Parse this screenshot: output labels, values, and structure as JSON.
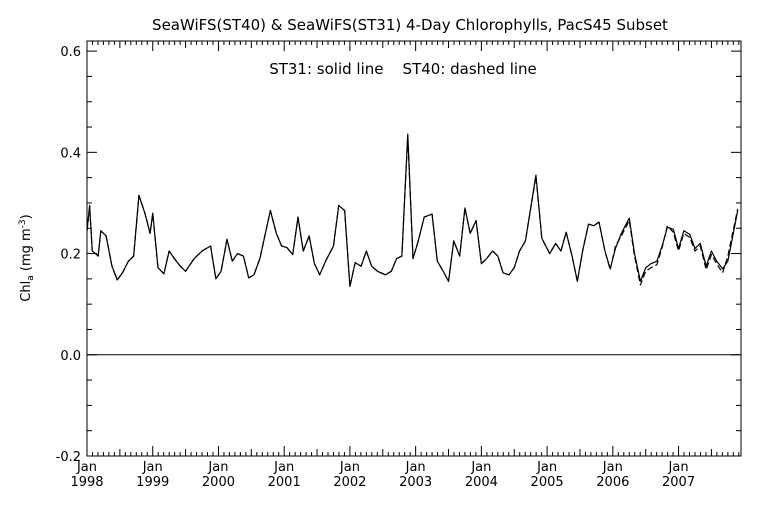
{
  "chart_data": {
    "type": "line",
    "title": "SeaWiFS(ST40) & SeaWiFS(ST31) 4-Day Chlorophylls, PacS45 Subset",
    "annotation": "ST31: solid line    ST40: dashed line",
    "ylabel_main": "Chl",
    "ylabel_sub": "a",
    "ylabel_unit": " (mg m",
    "ylabel_exp": "-3",
    "ylabel_close": ")",
    "ylim": [
      -0.2,
      0.62
    ],
    "xlim": [
      1998.0,
      2007.95
    ],
    "y_ticks": [
      {
        "value": -0.2,
        "label": "-0.2"
      },
      {
        "value": 0.0,
        "label": "0.0"
      },
      {
        "value": 0.2,
        "label": "0.2"
      },
      {
        "value": 0.4,
        "label": "0.4"
      },
      {
        "value": 0.6,
        "label": "0.6"
      }
    ],
    "x_ticks": [
      {
        "value": 1998,
        "month": "Jan",
        "year": "1998"
      },
      {
        "value": 1999,
        "month": "Jan",
        "year": "1999"
      },
      {
        "value": 2000,
        "month": "Jan",
        "year": "2000"
      },
      {
        "value": 2001,
        "month": "Jan",
        "year": "2001"
      },
      {
        "value": 2002,
        "month": "Jan",
        "year": "2002"
      },
      {
        "value": 2003,
        "month": "Jan",
        "year": "2003"
      },
      {
        "value": 2004,
        "month": "Jan",
        "year": "2004"
      },
      {
        "value": 2005,
        "month": "Jan",
        "year": "2005"
      },
      {
        "value": 2006,
        "month": "Jan",
        "year": "2006"
      },
      {
        "value": 2007,
        "month": "Jan",
        "year": "2007"
      }
    ],
    "zero_line": 0.0,
    "series": [
      {
        "name": "ST31",
        "style": "solid",
        "points": [
          [
            1998.0,
            0.245
          ],
          [
            1998.04,
            0.295
          ],
          [
            1998.08,
            0.205
          ],
          [
            1998.13,
            0.2
          ],
          [
            1998.17,
            0.195
          ],
          [
            1998.21,
            0.245
          ],
          [
            1998.29,
            0.235
          ],
          [
            1998.38,
            0.175
          ],
          [
            1998.46,
            0.148
          ],
          [
            1998.54,
            0.162
          ],
          [
            1998.63,
            0.185
          ],
          [
            1998.71,
            0.195
          ],
          [
            1998.79,
            0.315
          ],
          [
            1998.88,
            0.28
          ],
          [
            1998.96,
            0.24
          ],
          [
            1999.0,
            0.28
          ],
          [
            1999.08,
            0.172
          ],
          [
            1999.17,
            0.16
          ],
          [
            1999.25,
            0.205
          ],
          [
            1999.33,
            0.19
          ],
          [
            1999.42,
            0.175
          ],
          [
            1999.5,
            0.165
          ],
          [
            1999.63,
            0.19
          ],
          [
            1999.75,
            0.205
          ],
          [
            1999.88,
            0.215
          ],
          [
            1999.96,
            0.15
          ],
          [
            2000.04,
            0.165
          ],
          [
            2000.13,
            0.228
          ],
          [
            2000.21,
            0.185
          ],
          [
            2000.29,
            0.2
          ],
          [
            2000.38,
            0.195
          ],
          [
            2000.46,
            0.152
          ],
          [
            2000.54,
            0.158
          ],
          [
            2000.63,
            0.19
          ],
          [
            2000.79,
            0.285
          ],
          [
            2000.88,
            0.24
          ],
          [
            2000.96,
            0.215
          ],
          [
            2001.04,
            0.212
          ],
          [
            2001.13,
            0.198
          ],
          [
            2001.21,
            0.272
          ],
          [
            2001.29,
            0.205
          ],
          [
            2001.38,
            0.235
          ],
          [
            2001.46,
            0.18
          ],
          [
            2001.54,
            0.158
          ],
          [
            2001.63,
            0.185
          ],
          [
            2001.75,
            0.215
          ],
          [
            2001.83,
            0.295
          ],
          [
            2001.92,
            0.285
          ],
          [
            2002.0,
            0.135
          ],
          [
            2002.08,
            0.182
          ],
          [
            2002.17,
            0.175
          ],
          [
            2002.25,
            0.205
          ],
          [
            2002.33,
            0.175
          ],
          [
            2002.42,
            0.165
          ],
          [
            2002.54,
            0.158
          ],
          [
            2002.63,
            0.165
          ],
          [
            2002.71,
            0.19
          ],
          [
            2002.79,
            0.195
          ],
          [
            2002.88,
            0.436
          ],
          [
            2002.96,
            0.19
          ],
          [
            2003.04,
            0.225
          ],
          [
            2003.13,
            0.272
          ],
          [
            2003.25,
            0.278
          ],
          [
            2003.33,
            0.185
          ],
          [
            2003.42,
            0.165
          ],
          [
            2003.5,
            0.145
          ],
          [
            2003.58,
            0.225
          ],
          [
            2003.67,
            0.195
          ],
          [
            2003.75,
            0.29
          ],
          [
            2003.83,
            0.24
          ],
          [
            2003.92,
            0.265
          ],
          [
            2004.0,
            0.18
          ],
          [
            2004.08,
            0.19
          ],
          [
            2004.17,
            0.205
          ],
          [
            2004.25,
            0.195
          ],
          [
            2004.33,
            0.162
          ],
          [
            2004.42,
            0.158
          ],
          [
            2004.5,
            0.172
          ],
          [
            2004.58,
            0.205
          ],
          [
            2004.67,
            0.225
          ],
          [
            2004.83,
            0.355
          ],
          [
            2004.92,
            0.23
          ],
          [
            2005.04,
            0.2
          ],
          [
            2005.13,
            0.22
          ],
          [
            2005.21,
            0.205
          ],
          [
            2005.29,
            0.242
          ],
          [
            2005.38,
            0.195
          ],
          [
            2005.46,
            0.145
          ],
          [
            2005.54,
            0.205
          ],
          [
            2005.63,
            0.258
          ],
          [
            2005.71,
            0.255
          ],
          [
            2005.79,
            0.262
          ],
          [
            2005.88,
            0.205
          ],
          [
            2005.96,
            0.17
          ],
          [
            2006.04,
            0.21
          ],
          [
            2006.13,
            0.24
          ],
          [
            2006.25,
            0.27
          ],
          [
            2006.33,
            0.2
          ],
          [
            2006.42,
            0.145
          ],
          [
            2006.5,
            0.172
          ],
          [
            2006.58,
            0.18
          ],
          [
            2006.67,
            0.185
          ],
          [
            2006.75,
            0.215
          ],
          [
            2006.83,
            0.252
          ],
          [
            2006.92,
            0.248
          ],
          [
            2007.0,
            0.21
          ],
          [
            2007.08,
            0.245
          ],
          [
            2007.17,
            0.238
          ],
          [
            2007.25,
            0.21
          ],
          [
            2007.33,
            0.22
          ],
          [
            2007.42,
            0.175
          ],
          [
            2007.5,
            0.205
          ],
          [
            2007.58,
            0.185
          ],
          [
            2007.67,
            0.17
          ],
          [
            2007.75,
            0.185
          ],
          [
            2007.83,
            0.238
          ],
          [
            2007.9,
            0.285
          ]
        ]
      },
      {
        "name": "ST40",
        "style": "dashed",
        "points": [
          [
            1998.0,
            0.245
          ],
          [
            1998.04,
            0.292
          ],
          [
            1998.08,
            0.205
          ],
          [
            1998.13,
            0.2
          ],
          [
            1998.17,
            0.195
          ],
          [
            1998.21,
            0.245
          ],
          [
            1998.29,
            0.235
          ],
          [
            1998.38,
            0.175
          ],
          [
            1998.46,
            0.148
          ],
          [
            1998.54,
            0.162
          ],
          [
            1998.63,
            0.185
          ],
          [
            1998.71,
            0.195
          ],
          [
            1998.79,
            0.315
          ],
          [
            1998.88,
            0.28
          ],
          [
            1998.96,
            0.24
          ],
          [
            1999.0,
            0.278
          ],
          [
            1999.08,
            0.172
          ],
          [
            1999.17,
            0.16
          ],
          [
            1999.25,
            0.205
          ],
          [
            1999.33,
            0.19
          ],
          [
            1999.42,
            0.175
          ],
          [
            1999.5,
            0.165
          ],
          [
            1999.63,
            0.19
          ],
          [
            1999.75,
            0.205
          ],
          [
            1999.88,
            0.215
          ],
          [
            1999.96,
            0.15
          ],
          [
            2000.04,
            0.165
          ],
          [
            2000.13,
            0.228
          ],
          [
            2000.21,
            0.185
          ],
          [
            2000.29,
            0.2
          ],
          [
            2000.38,
            0.195
          ],
          [
            2000.46,
            0.152
          ],
          [
            2000.54,
            0.158
          ],
          [
            2000.63,
            0.19
          ],
          [
            2000.79,
            0.285
          ],
          [
            2000.88,
            0.24
          ],
          [
            2000.96,
            0.215
          ],
          [
            2001.04,
            0.212
          ],
          [
            2001.13,
            0.198
          ],
          [
            2001.21,
            0.272
          ],
          [
            2001.29,
            0.205
          ],
          [
            2001.38,
            0.235
          ],
          [
            2001.46,
            0.18
          ],
          [
            2001.54,
            0.158
          ],
          [
            2001.63,
            0.185
          ],
          [
            2001.75,
            0.215
          ],
          [
            2001.83,
            0.295
          ],
          [
            2001.92,
            0.285
          ],
          [
            2002.0,
            0.135
          ],
          [
            2002.08,
            0.182
          ],
          [
            2002.17,
            0.175
          ],
          [
            2002.25,
            0.205
          ],
          [
            2002.33,
            0.175
          ],
          [
            2002.42,
            0.165
          ],
          [
            2002.54,
            0.158
          ],
          [
            2002.63,
            0.165
          ],
          [
            2002.71,
            0.19
          ],
          [
            2002.79,
            0.195
          ],
          [
            2002.88,
            0.432
          ],
          [
            2002.96,
            0.19
          ],
          [
            2003.04,
            0.225
          ],
          [
            2003.13,
            0.272
          ],
          [
            2003.25,
            0.278
          ],
          [
            2003.33,
            0.185
          ],
          [
            2003.42,
            0.165
          ],
          [
            2003.5,
            0.145
          ],
          [
            2003.58,
            0.225
          ],
          [
            2003.67,
            0.195
          ],
          [
            2003.75,
            0.29
          ],
          [
            2003.83,
            0.24
          ],
          [
            2003.92,
            0.265
          ],
          [
            2004.0,
            0.18
          ],
          [
            2004.08,
            0.19
          ],
          [
            2004.17,
            0.205
          ],
          [
            2004.25,
            0.195
          ],
          [
            2004.33,
            0.162
          ],
          [
            2004.42,
            0.158
          ],
          [
            2004.5,
            0.172
          ],
          [
            2004.58,
            0.205
          ],
          [
            2004.67,
            0.225
          ],
          [
            2004.83,
            0.352
          ],
          [
            2004.92,
            0.23
          ],
          [
            2005.04,
            0.2
          ],
          [
            2005.13,
            0.22
          ],
          [
            2005.21,
            0.205
          ],
          [
            2005.29,
            0.242
          ],
          [
            2005.38,
            0.195
          ],
          [
            2005.46,
            0.145
          ],
          [
            2005.54,
            0.205
          ],
          [
            2005.63,
            0.258
          ],
          [
            2005.71,
            0.255
          ],
          [
            2005.79,
            0.262
          ],
          [
            2005.88,
            0.205
          ],
          [
            2005.96,
            0.168
          ],
          [
            2006.04,
            0.215
          ],
          [
            2006.13,
            0.235
          ],
          [
            2006.25,
            0.265
          ],
          [
            2006.33,
            0.195
          ],
          [
            2006.42,
            0.138
          ],
          [
            2006.5,
            0.165
          ],
          [
            2006.58,
            0.172
          ],
          [
            2006.67,
            0.178
          ],
          [
            2006.75,
            0.212
          ],
          [
            2006.83,
            0.255
          ],
          [
            2006.92,
            0.242
          ],
          [
            2007.0,
            0.205
          ],
          [
            2007.08,
            0.24
          ],
          [
            2007.17,
            0.232
          ],
          [
            2007.25,
            0.205
          ],
          [
            2007.33,
            0.215
          ],
          [
            2007.42,
            0.168
          ],
          [
            2007.5,
            0.198
          ],
          [
            2007.58,
            0.18
          ],
          [
            2007.67,
            0.162
          ],
          [
            2007.75,
            0.195
          ],
          [
            2007.83,
            0.245
          ],
          [
            2007.9,
            0.288
          ]
        ]
      }
    ]
  }
}
